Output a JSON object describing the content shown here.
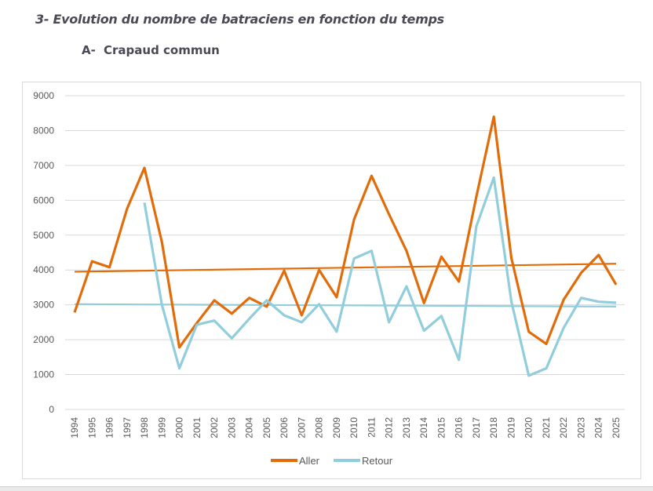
{
  "document": {
    "heading": "3- Evolution du nombre de batraciens en fonction du temps",
    "subheading_number": "A-",
    "subheading_text": "Crapaud commun"
  },
  "chart_data": {
    "type": "line",
    "title": "",
    "xlabel": "",
    "ylabel": "",
    "ylim": [
      0,
      9000
    ],
    "yticks": [
      0,
      1000,
      2000,
      3000,
      4000,
      5000,
      6000,
      7000,
      8000,
      9000
    ],
    "grid": true,
    "legend_position": "bottom",
    "x": [
      "1994",
      "1995",
      "1996",
      "1997",
      "1998",
      "1999",
      "2000",
      "2001",
      "2002",
      "2003",
      "2004",
      "2005",
      "2006",
      "2007",
      "2008",
      "2009",
      "2010",
      "2011",
      "2012",
      "2013",
      "2014",
      "2015",
      "2016",
      "2017",
      "2018",
      "2019",
      "2020",
      "2021",
      "2022",
      "2023",
      "2024",
      "2025"
    ],
    "series": [
      {
        "name": "Aller",
        "color": "#e36c0a",
        "values": [
          2780,
          4250,
          4080,
          5750,
          6930,
          4800,
          1780,
          2480,
          3130,
          2750,
          3200,
          2950,
          3980,
          2700,
          4000,
          3220,
          5450,
          6700,
          5600,
          4550,
          3050,
          4380,
          3670,
          6100,
          8400,
          4350,
          2230,
          1880,
          3150,
          3920,
          4430,
          3580
        ]
      },
      {
        "name": "Retour",
        "color": "#92cddc",
        "values": [
          null,
          null,
          null,
          null,
          5930,
          3000,
          1180,
          2430,
          2550,
          2040,
          2600,
          3130,
          2700,
          2500,
          3020,
          2230,
          4330,
          4550,
          2500,
          3530,
          2260,
          2680,
          1420,
          5250,
          6650,
          3100,
          970,
          1180,
          2340,
          3200,
          3090,
          3060
        ]
      }
    ],
    "trendlines": [
      {
        "series": "Aller",
        "type": "linear",
        "start": 3950,
        "end": 4180,
        "color": "#e36c0a"
      },
      {
        "series": "Retour",
        "type": "linear",
        "start": 3020,
        "end": 2950,
        "color": "#92cddc"
      }
    ]
  }
}
